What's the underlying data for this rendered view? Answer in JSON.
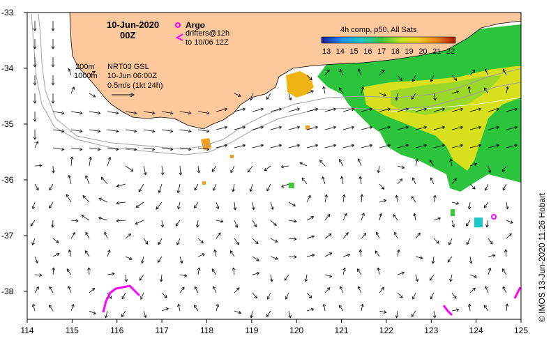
{
  "map": {
    "x_ticks": [
      "114",
      "115",
      "116",
      "117",
      "118",
      "119",
      "120",
      "121",
      "122",
      "123",
      "124",
      "125"
    ],
    "y_ticks": [
      "-33",
      "-34",
      "-35",
      "-36",
      "-37",
      "-38"
    ],
    "x_range": [
      114,
      125
    ],
    "y_range": [
      -38.5,
      -33
    ]
  },
  "title": {
    "date": "10-Jun-2020",
    "hour": "00Z"
  },
  "legend": {
    "argo": "Argo",
    "drifters_line1": "drifters@12h",
    "drifters_line2": "to 10/06 12Z",
    "isobath_200": "200m",
    "isobath_1000": "1000m",
    "product": "NRT00 GSL",
    "valid_time": "10-Jun 06:00Z",
    "speed_ref": "0.5m/s (1kt 24h)"
  },
  "colorbar": {
    "title": "4h comp, p50, All Sats",
    "ticks": [
      "13",
      "14",
      "15",
      "16",
      "17",
      "18",
      "19",
      "20",
      "21",
      "22"
    ]
  },
  "credit": "© IMOS 13-Jun-2020 11:26 Hobart",
  "colors": {
    "land": "#fcc89c",
    "drifter": "#ff00ff",
    "isobath": "#a0a0a0",
    "sst_green": "#22c43a",
    "sst_yellow": "#e6e000",
    "sst_orange": "#f0a000"
  }
}
